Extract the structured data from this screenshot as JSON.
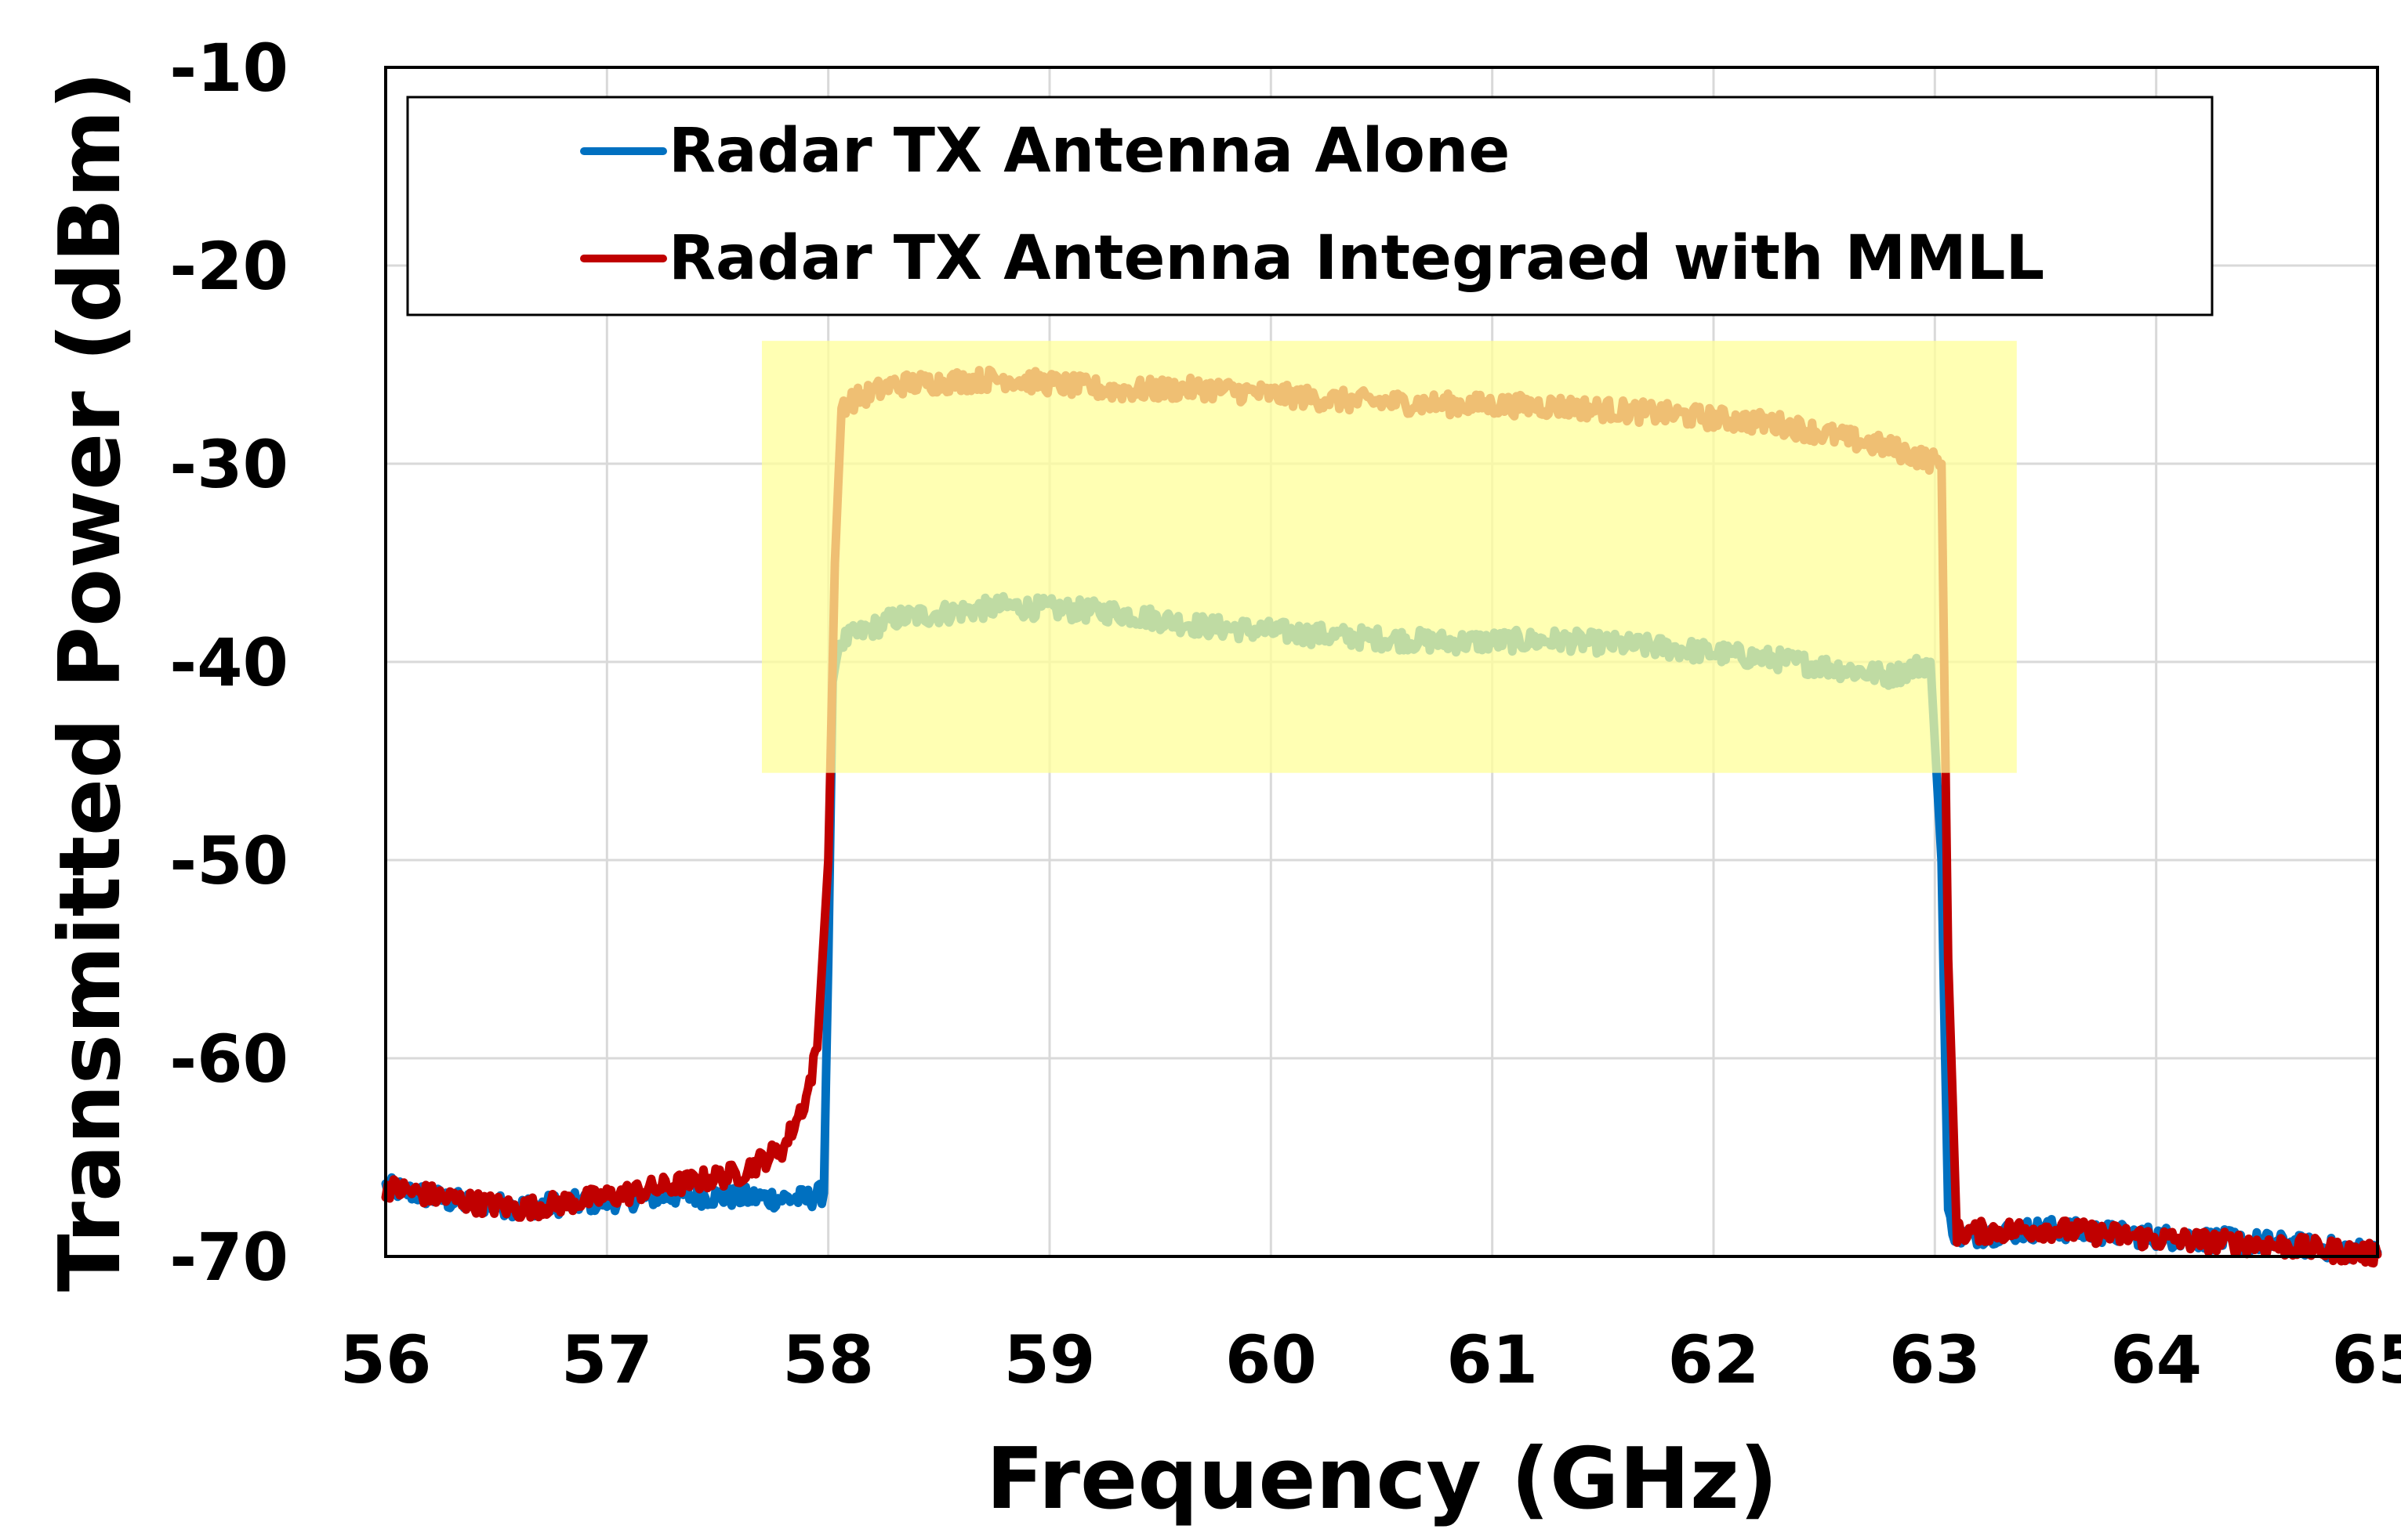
{
  "chart_data": {
    "type": "line",
    "title": "",
    "xlabel": "Frequency (GHz)",
    "ylabel": "Transmitted Power (dBm)",
    "xlim": [
      56,
      65
    ],
    "ylim": [
      -70,
      -10
    ],
    "xticks": [
      56,
      57,
      58,
      59,
      60,
      61,
      62,
      63,
      64,
      65
    ],
    "yticks": [
      -10,
      -20,
      -30,
      -40,
      -50,
      -60,
      -70
    ],
    "grid": true,
    "legend_position": "top-left",
    "highlight_band": {
      "x": [
        57.7,
        63.37
      ],
      "y": [
        -45.6,
        -23.8
      ],
      "color": "#ffff99"
    },
    "series": [
      {
        "name": "Radar TX Antenna Alone",
        "color": "#0070c0",
        "x": [
          56.0,
          56.3,
          56.6,
          57.0,
          57.3,
          57.6,
          57.9,
          57.98,
          58.0,
          58.02,
          58.05,
          58.3,
          58.8,
          59.3,
          59.7,
          60.3,
          60.8,
          61.3,
          61.8,
          62.3,
          62.8,
          62.98,
          63.03,
          63.06,
          63.1,
          63.5,
          64.0,
          64.5,
          65.0
        ],
        "values": [
          -66.5,
          -67.2,
          -67.5,
          -67.2,
          -66.9,
          -67.0,
          -67.1,
          -66.8,
          -55.0,
          -41.0,
          -39.0,
          -37.8,
          -37.2,
          -37.5,
          -38.2,
          -38.7,
          -39.0,
          -38.9,
          -39.3,
          -39.9,
          -40.7,
          -40.0,
          -50.0,
          -68.0,
          -69.0,
          -68.6,
          -69.0,
          -69.3,
          -69.8
        ]
      },
      {
        "name": "Radar TX Antenna Integraed with MMLL",
        "color": "#c00000",
        "x": [
          56.0,
          56.3,
          56.6,
          57.0,
          57.3,
          57.6,
          57.8,
          57.9,
          57.95,
          58.0,
          58.03,
          58.06,
          58.3,
          58.8,
          59.3,
          59.7,
          60.3,
          60.8,
          61.3,
          61.8,
          62.3,
          62.8,
          63.03,
          63.06,
          63.1,
          63.5,
          64.0,
          64.5,
          65.0
        ],
        "values": [
          -66.5,
          -67.1,
          -67.6,
          -67.0,
          -66.4,
          -65.8,
          -64.5,
          -62.0,
          -59.5,
          -50.0,
          -35.0,
          -27.0,
          -26.0,
          -25.7,
          -26.3,
          -26.2,
          -26.8,
          -27.0,
          -27.1,
          -27.5,
          -28.0,
          -29.2,
          -30.0,
          -55.0,
          -68.8,
          -68.6,
          -69.1,
          -69.4,
          -69.9
        ]
      }
    ]
  }
}
